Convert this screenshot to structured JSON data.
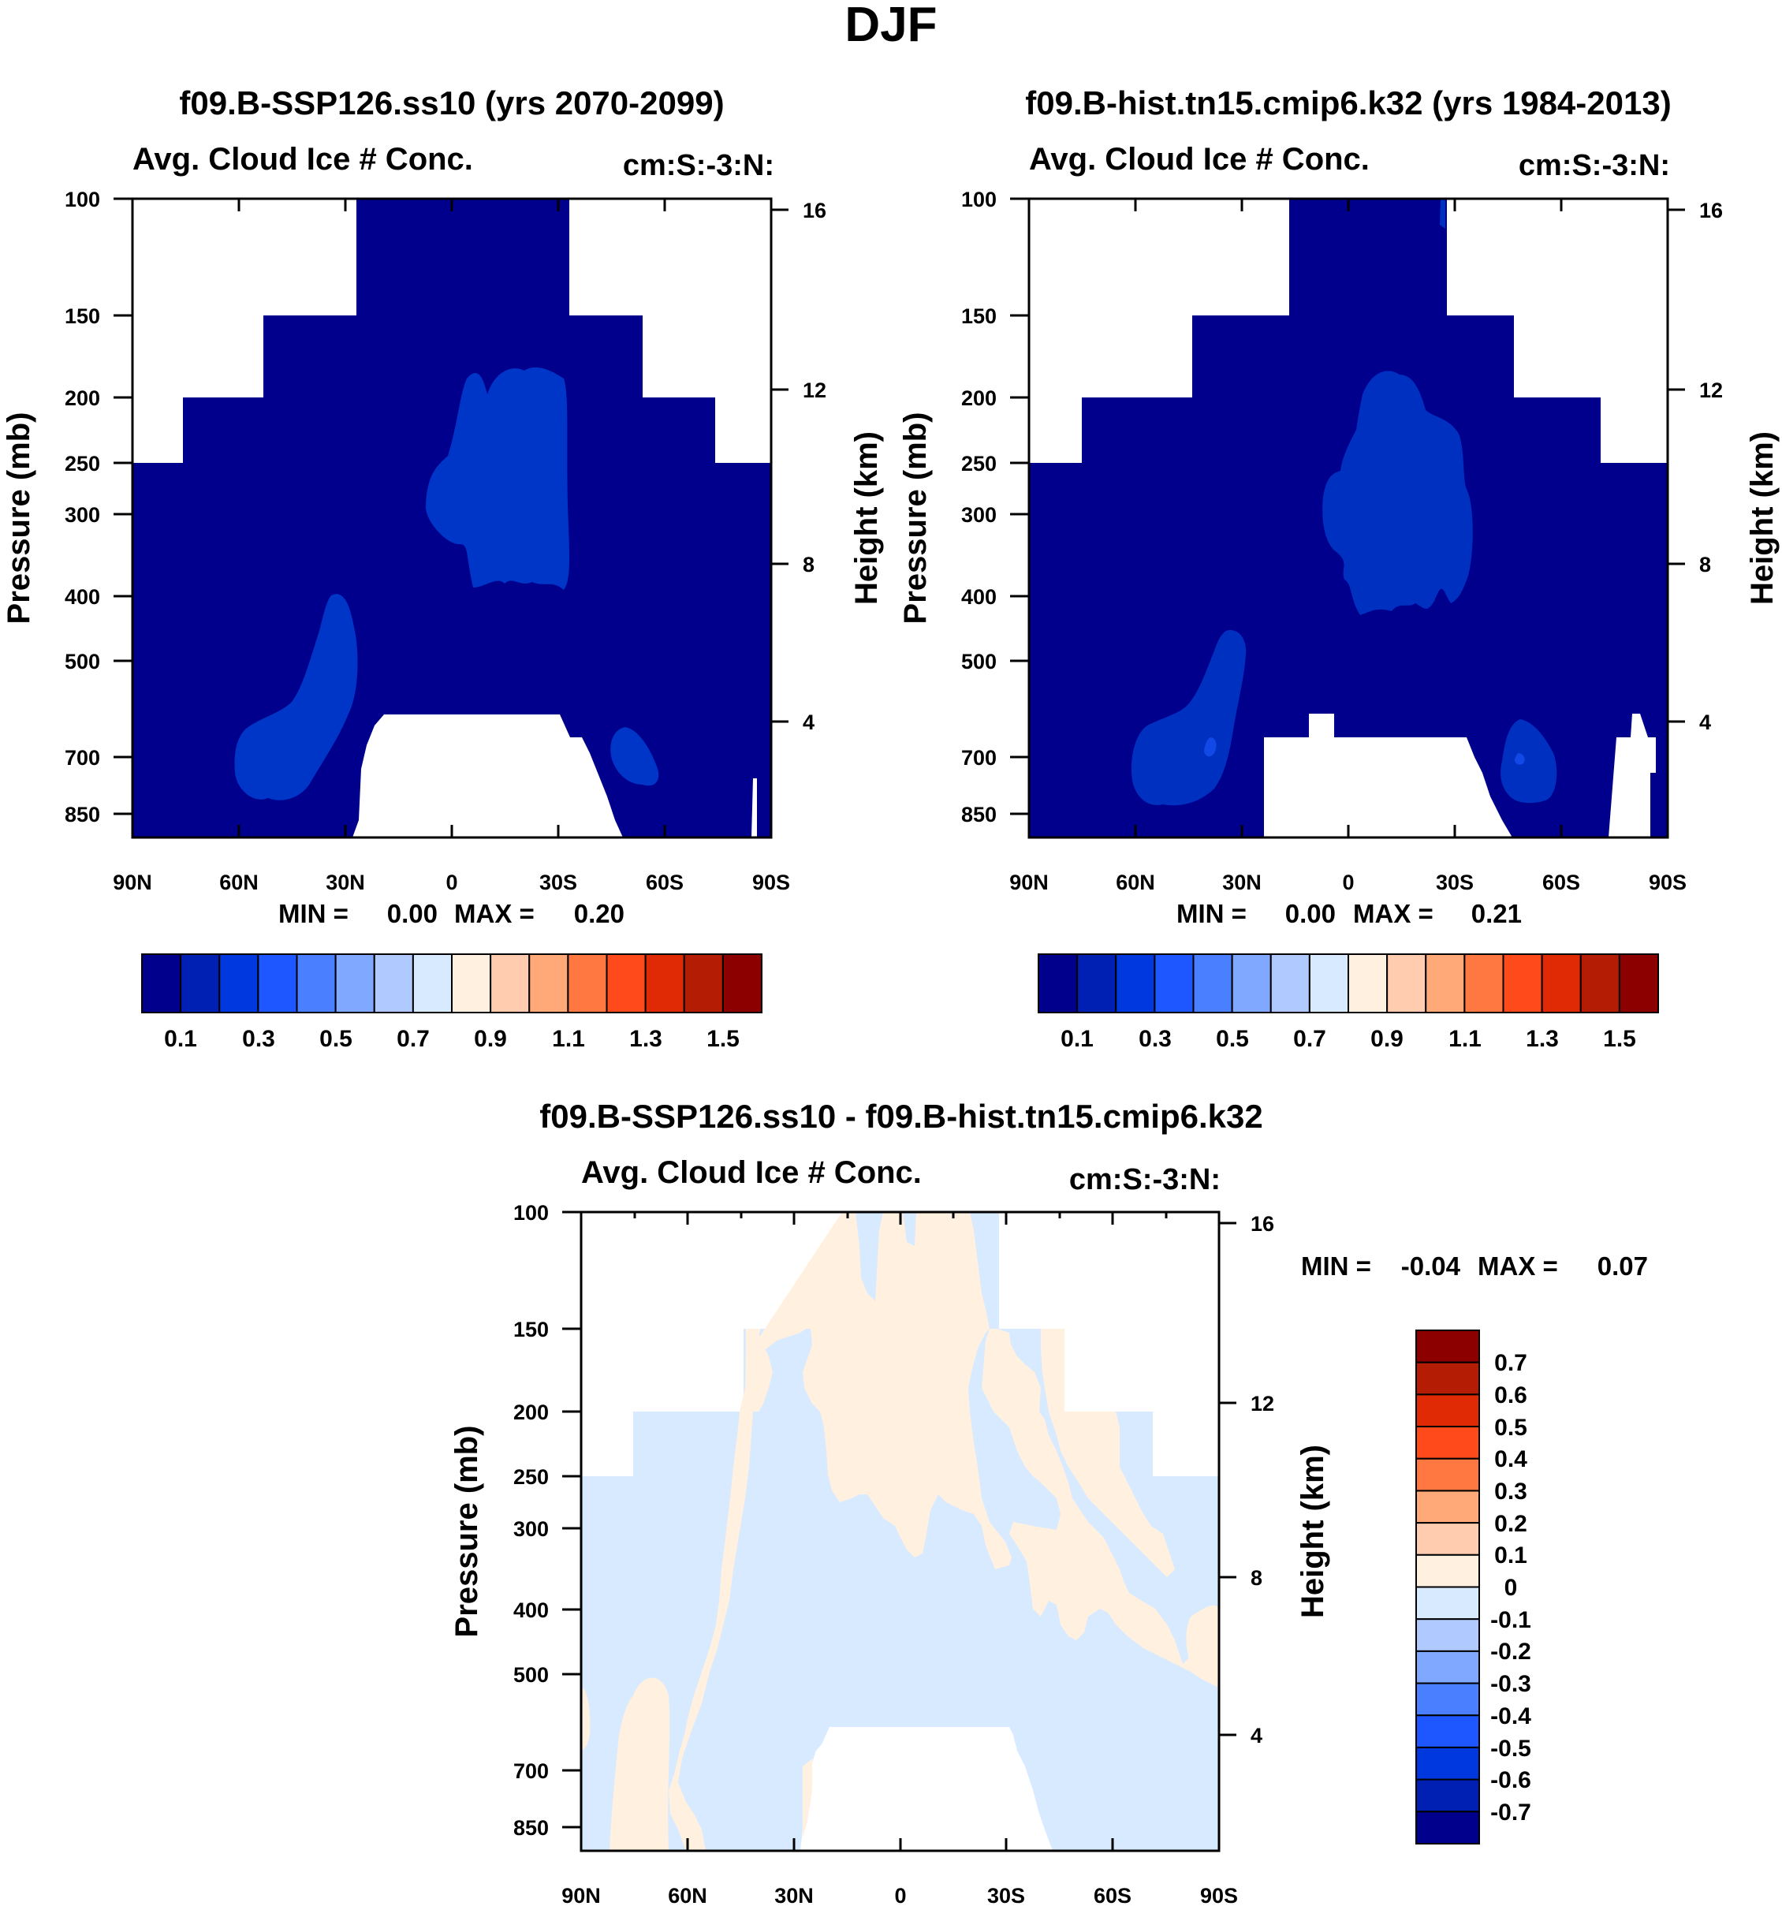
{
  "figure_title": "DJF",
  "colors": {
    "abs_scale": [
      "#00008c",
      "#0020b4",
      "#0038e0",
      "#1e56ff",
      "#4a80ff",
      "#80a8ff",
      "#b0caff",
      "#d8eaff",
      "#fff0e0",
      "#ffccb0",
      "#ffa878",
      "#ff7842",
      "#ff4a1c",
      "#e02a06",
      "#b41c04",
      "#8c0000"
    ],
    "diff_scale": [
      "#00008c",
      "#0020b4",
      "#0038e0",
      "#1e56ff",
      "#4a80ff",
      "#80a8ff",
      "#b0caff",
      "#d8eaff",
      "#fff0e0",
      "#ffccb0",
      "#ffa878",
      "#ff7842",
      "#ff4a1c",
      "#e02a06",
      "#b41c04",
      "#8c0000"
    ]
  },
  "chart_data": [
    {
      "type": "contour",
      "title": "f09.B-SSP126.ss10 (yrs 2070-2099)",
      "subtitle_left": "Avg. Cloud Ice # Conc.",
      "subtitle_right": "cm:S:-3:N:",
      "xlabel": "",
      "ylabel": "Pressure (mb)",
      "ylabel_right": "Height (km)",
      "x_ticks": [
        "90N",
        "60N",
        "30N",
        "0",
        "30S",
        "60S",
        "90S"
      ],
      "y_ticks": [
        "100",
        "150",
        "200",
        "250",
        "300",
        "400",
        "500",
        "700",
        "850"
      ],
      "y_ticks_right": [
        "16",
        "12",
        "8",
        "4"
      ],
      "ylim_mb": [
        100,
        920
      ],
      "min_label": "MIN =",
      "min_value": "0.00",
      "max_label": "MAX =",
      "max_value": "0.20",
      "colorbar_labels": [
        "0.1",
        "0.3",
        "0.5",
        "0.7",
        "0.9",
        "1.1",
        "1.3",
        "1.5"
      ]
    },
    {
      "type": "contour",
      "title": "f09.B-hist.tn15.cmip6.k32 (yrs 1984-2013)",
      "subtitle_left": "Avg. Cloud Ice # Conc.",
      "subtitle_right": "cm:S:-3:N:",
      "xlabel": "",
      "ylabel": "Pressure (mb)",
      "ylabel_right": "Height (km)",
      "x_ticks": [
        "90N",
        "60N",
        "30N",
        "0",
        "30S",
        "60S",
        "90S"
      ],
      "y_ticks": [
        "100",
        "150",
        "200",
        "250",
        "300",
        "400",
        "500",
        "700",
        "850"
      ],
      "y_ticks_right": [
        "16",
        "12",
        "8",
        "4"
      ],
      "ylim_mb": [
        100,
        920
      ],
      "min_label": "MIN =",
      "min_value": "0.00",
      "max_label": "MAX =",
      "max_value": "0.21",
      "colorbar_labels": [
        "0.1",
        "0.3",
        "0.5",
        "0.7",
        "0.9",
        "1.1",
        "1.3",
        "1.5"
      ]
    },
    {
      "type": "contour",
      "title": "f09.B-SSP126.ss10 - f09.B-hist.tn15.cmip6.k32",
      "subtitle_left": "Avg. Cloud Ice # Conc.",
      "subtitle_right": "cm:S:-3:N:",
      "xlabel": "",
      "ylabel": "Pressure (mb)",
      "ylabel_right": "Height (km)",
      "x_ticks": [
        "90N",
        "60N",
        "30N",
        "0",
        "30S",
        "60S",
        "90S"
      ],
      "y_ticks": [
        "100",
        "150",
        "200",
        "250",
        "300",
        "400",
        "500",
        "700",
        "850"
      ],
      "y_ticks_right": [
        "16",
        "12",
        "8",
        "4"
      ],
      "ylim_mb": [
        100,
        920
      ],
      "min_label": "MIN =",
      "min_value": "-0.04",
      "max_label": "MAX =",
      "max_value": "0.07",
      "colorbar_labels": [
        "0.7",
        "0.6",
        "0.5",
        "0.4",
        "0.3",
        "0.2",
        "0.1",
        "0",
        "-0.1",
        "-0.2",
        "-0.3",
        "-0.4",
        "-0.5",
        "-0.6",
        "-0.7"
      ]
    }
  ]
}
